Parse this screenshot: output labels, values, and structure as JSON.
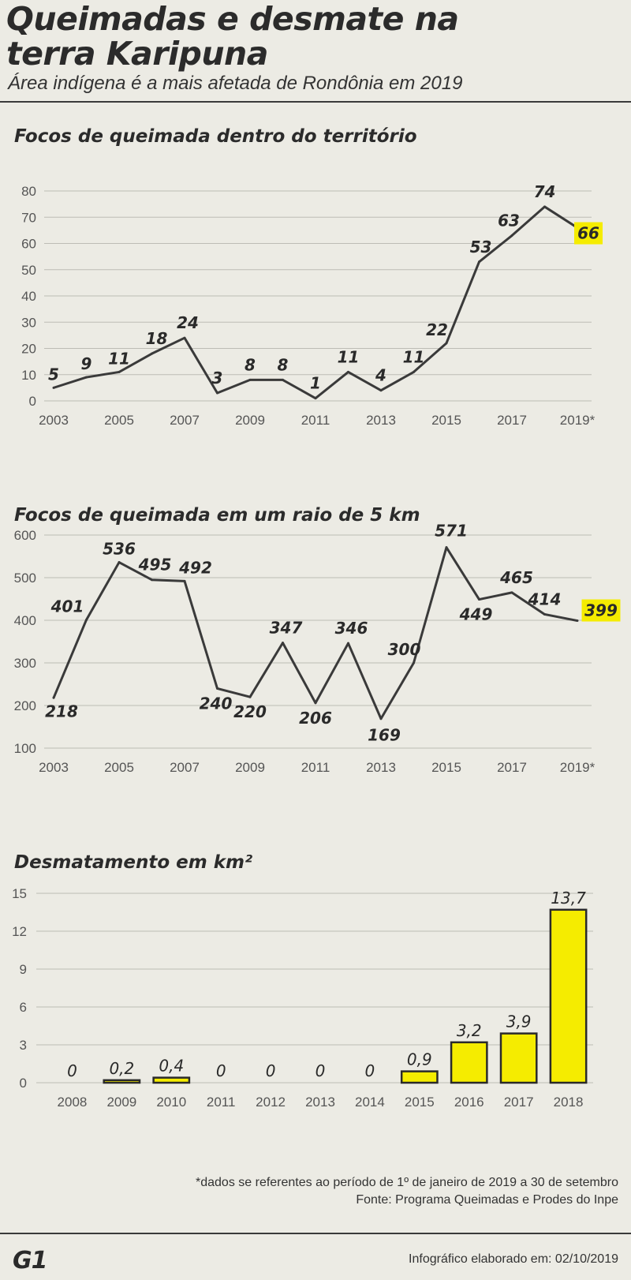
{
  "header": {
    "title": "Queimadas e desmate na terra Karipuna",
    "subtitle": "Área indígena é a mais afetada de Rondônia em 2019"
  },
  "chart_data": [
    {
      "type": "line",
      "title": "Focos de queimada dentro do território",
      "x": [
        "2003",
        "2004",
        "2005",
        "2006",
        "2007",
        "2008",
        "2009",
        "2010",
        "2011",
        "2012",
        "2013",
        "2014",
        "2015",
        "2016",
        "2017",
        "2018",
        "2019*"
      ],
      "values": [
        5,
        9,
        11,
        18,
        24,
        3,
        8,
        8,
        1,
        11,
        4,
        11,
        22,
        53,
        63,
        74,
        66
      ],
      "data_labels": [
        "5",
        "9",
        "11",
        "18",
        "24",
        "3",
        "8",
        "8",
        "1",
        "11",
        "4",
        "11",
        "22",
        "53",
        "63",
        "74",
        "66"
      ],
      "x_tick_labels": [
        "2003",
        "2005",
        "2007",
        "2009",
        "2011",
        "2013",
        "2015",
        "2017",
        "2019*"
      ],
      "y_ticks": [
        0,
        10,
        20,
        30,
        40,
        50,
        60,
        70,
        80
      ],
      "ylim": [
        0,
        80
      ],
      "grid": true,
      "highlight_color": "#f5ec00",
      "line_color": "#3a3a3a"
    },
    {
      "type": "line",
      "title": "Focos de queimada em um raio de 5 km",
      "x": [
        "2003",
        "2004",
        "2005",
        "2006",
        "2007",
        "2008",
        "2009",
        "2010",
        "2011",
        "2012",
        "2013",
        "2014",
        "2015",
        "2016",
        "2017",
        "2018",
        "2019*"
      ],
      "values": [
        218,
        401,
        536,
        495,
        492,
        240,
        220,
        347,
        206,
        346,
        169,
        300,
        571,
        449,
        465,
        414,
        399
      ],
      "data_labels": [
        "218",
        "401",
        "536",
        "495",
        "492",
        "240",
        "220",
        "347",
        "206",
        "346",
        "169",
        "300",
        "571",
        "449",
        "465",
        "414",
        "399"
      ],
      "x_tick_labels": [
        "2003",
        "2005",
        "2007",
        "2009",
        "2011",
        "2013",
        "2015",
        "2017",
        "2019*"
      ],
      "y_ticks": [
        100,
        200,
        300,
        400,
        500,
        600
      ],
      "ylim": [
        100,
        600
      ],
      "grid": true,
      "highlight_color": "#f5ec00",
      "line_color": "#3a3a3a"
    },
    {
      "type": "bar",
      "title": "Desmatamento em km²",
      "categories": [
        "2008",
        "2009",
        "2010",
        "2011",
        "2012",
        "2013",
        "2014",
        "2015",
        "2016",
        "2017",
        "2018"
      ],
      "values": [
        0,
        0.2,
        0.4,
        0,
        0,
        0,
        0,
        0.9,
        3.2,
        3.9,
        13.7
      ],
      "data_labels": [
        "0",
        "0,2",
        "0,4",
        "0",
        "0",
        "0",
        "0",
        "0,9",
        "3,2",
        "3,9",
        "13,7"
      ],
      "y_ticks": [
        0,
        3,
        6,
        9,
        12,
        15
      ],
      "ylim": [
        0,
        15
      ],
      "grid": true,
      "bar_color": "#f5ec00",
      "bar_stroke": "#2a2a2a"
    }
  ],
  "footer": {
    "note": "*dados se referentes ao período de 1º de janeiro de 2019 a 30 de setembro",
    "source": "Fonte: Programa Queimadas e Prodes do Inpe",
    "logo": "G1",
    "credit": "Infográfico elaborado em: 02/10/2019"
  }
}
